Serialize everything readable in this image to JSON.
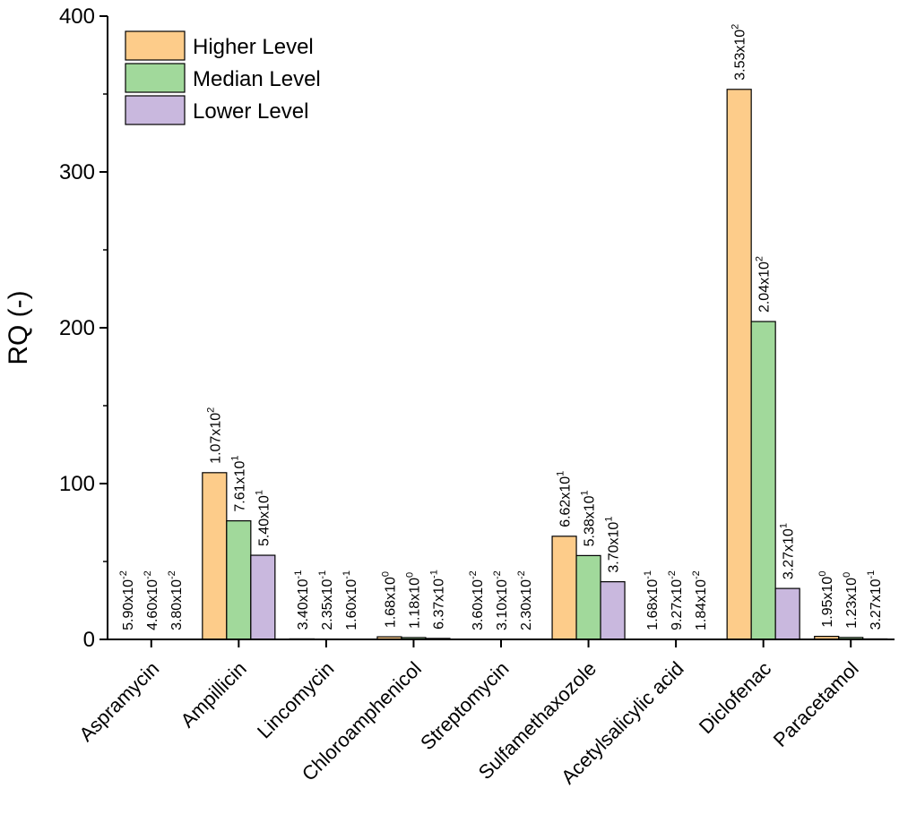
{
  "chart_data": {
    "type": "bar",
    "title": "",
    "xlabel": "",
    "ylabel": "RQ (-)",
    "ylim": [
      0,
      400
    ],
    "yticks": [
      "0",
      "100",
      "200",
      "300",
      "400"
    ],
    "grid": false,
    "legend_position": "top-left",
    "categories": [
      "Aspramycin",
      "Ampillicin",
      "Lincomycin",
      "Chloroamphenicol",
      "Streptomycin",
      "Sulfamethaxozole",
      "Acetylsalicylic acid",
      "Diclofenac",
      "Paracetamol"
    ],
    "series": [
      {
        "name": "Higher Level",
        "color": "#fdcc8a",
        "values": [
          0.059,
          107,
          0.34,
          1.68,
          0.036,
          66.2,
          0.168,
          353,
          1.95
        ],
        "labels": [
          {
            "m": "5.90x10",
            "e": "-2"
          },
          {
            "m": "1.07x10",
            "e": "2"
          },
          {
            "m": "3.40x10",
            "e": "-1"
          },
          {
            "m": "1.68x10",
            "e": "0"
          },
          {
            "m": "3.60x10",
            "e": "-2"
          },
          {
            "m": "6.62x10",
            "e": "1"
          },
          {
            "m": "1.68x10",
            "e": "-1"
          },
          {
            "m": "3.53x10",
            "e": "2"
          },
          {
            "m": "1.95x10",
            "e": "0"
          }
        ]
      },
      {
        "name": "Median Level",
        "color": "#a1d99b",
        "values": [
          0.046,
          76.1,
          0.235,
          1.18,
          0.031,
          53.8,
          0.0927,
          204,
          1.23
        ],
        "labels": [
          {
            "m": "4.60x10",
            "e": "-2"
          },
          {
            "m": "7.61x10",
            "e": "1"
          },
          {
            "m": "2.35x10",
            "e": "-1"
          },
          {
            "m": "1.18x10",
            "e": "0"
          },
          {
            "m": "3.10x10",
            "e": "-2"
          },
          {
            "m": "5.38x10",
            "e": "1"
          },
          {
            "m": "9.27x10",
            "e": "-2"
          },
          {
            "m": "2.04x10",
            "e": "2"
          },
          {
            "m": "1.23x10",
            "e": "0"
          }
        ]
      },
      {
        "name": "Lower Level",
        "color": "#c9b8de",
        "values": [
          0.038,
          54.0,
          0.16,
          0.637,
          0.023,
          37.0,
          0.0184,
          32.7,
          0.327
        ],
        "labels": [
          {
            "m": "3.80x10",
            "e": "-2"
          },
          {
            "m": "5.40x10",
            "e": "1"
          },
          {
            "m": "1.60x10",
            "e": "-1"
          },
          {
            "m": "6.37x10",
            "e": "-1"
          },
          {
            "m": "2.30x10",
            "e": "-2"
          },
          {
            "m": "3.70x10",
            "e": "1"
          },
          {
            "m": "1.84x10",
            "e": "-2"
          },
          {
            "m": "3.27x10",
            "e": "1"
          },
          {
            "m": "3.27x10",
            "e": "-1"
          }
        ]
      }
    ]
  }
}
